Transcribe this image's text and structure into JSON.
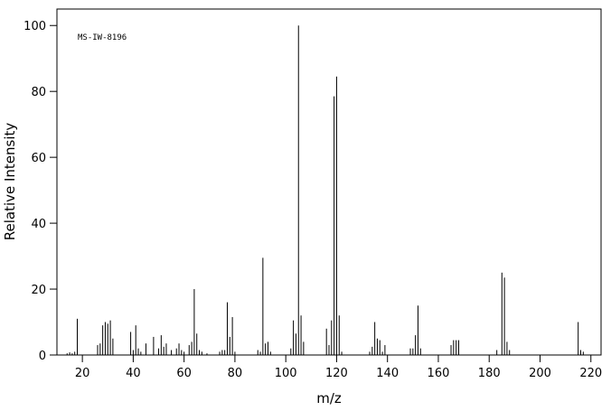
{
  "chart_data": {
    "type": "spectrum",
    "annotation": "MS-IW-8196",
    "xlabel": "m/z",
    "ylabel": "Relative Intensity",
    "color": "#000000",
    "xlim": [
      10,
      224
    ],
    "ylim": [
      0,
      105
    ],
    "xticks": [
      20,
      40,
      60,
      80,
      100,
      120,
      140,
      160,
      180,
      200,
      220
    ],
    "yticks": [
      0,
      20,
      40,
      60,
      80,
      100
    ],
    "x": [
      14,
      15,
      16,
      17,
      18,
      26,
      27,
      28,
      29,
      30,
      31,
      32,
      39,
      40,
      41,
      42,
      43,
      45,
      48,
      50,
      51,
      52,
      53,
      55,
      57,
      58,
      59,
      60,
      62,
      63,
      64,
      65,
      66,
      67,
      69,
      74,
      75,
      76,
      77,
      78,
      79,
      80,
      89,
      90,
      91,
      92,
      93,
      94,
      102,
      103,
      104,
      105,
      106,
      107,
      116,
      117,
      118,
      119,
      120,
      121,
      122,
      133,
      134,
      135,
      136,
      137,
      138,
      139,
      149,
      150,
      151,
      152,
      153,
      165,
      166,
      167,
      168,
      183,
      185,
      186,
      187,
      188,
      215,
      216,
      217
    ],
    "values": [
      0.5,
      0.8,
      0.5,
      1,
      11,
      3,
      3.5,
      9,
      10,
      9.5,
      10.5,
      5,
      7,
      1.5,
      9,
      2,
      1,
      3.5,
      5.5,
      2,
      6,
      2.5,
      3.5,
      1.5,
      2,
      3.5,
      1.5,
      1,
      3,
      4,
      20,
      6.5,
      1.5,
      1,
      0.5,
      1,
      1.5,
      1.5,
      16,
      5.5,
      11.5,
      1,
      1.5,
      1,
      29.5,
      3.5,
      4,
      1,
      2,
      10.5,
      6.5,
      100,
      12,
      4,
      8,
      3,
      10.5,
      78.5,
      84.5,
      12,
      1,
      1,
      2.5,
      10,
      5,
      4.5,
      1,
      3,
      2,
      2,
      6,
      15,
      2,
      3,
      4.5,
      4.5,
      4.5,
      1.5,
      25,
      23.5,
      4,
      1.5,
      10,
      1.5,
      1
    ]
  }
}
